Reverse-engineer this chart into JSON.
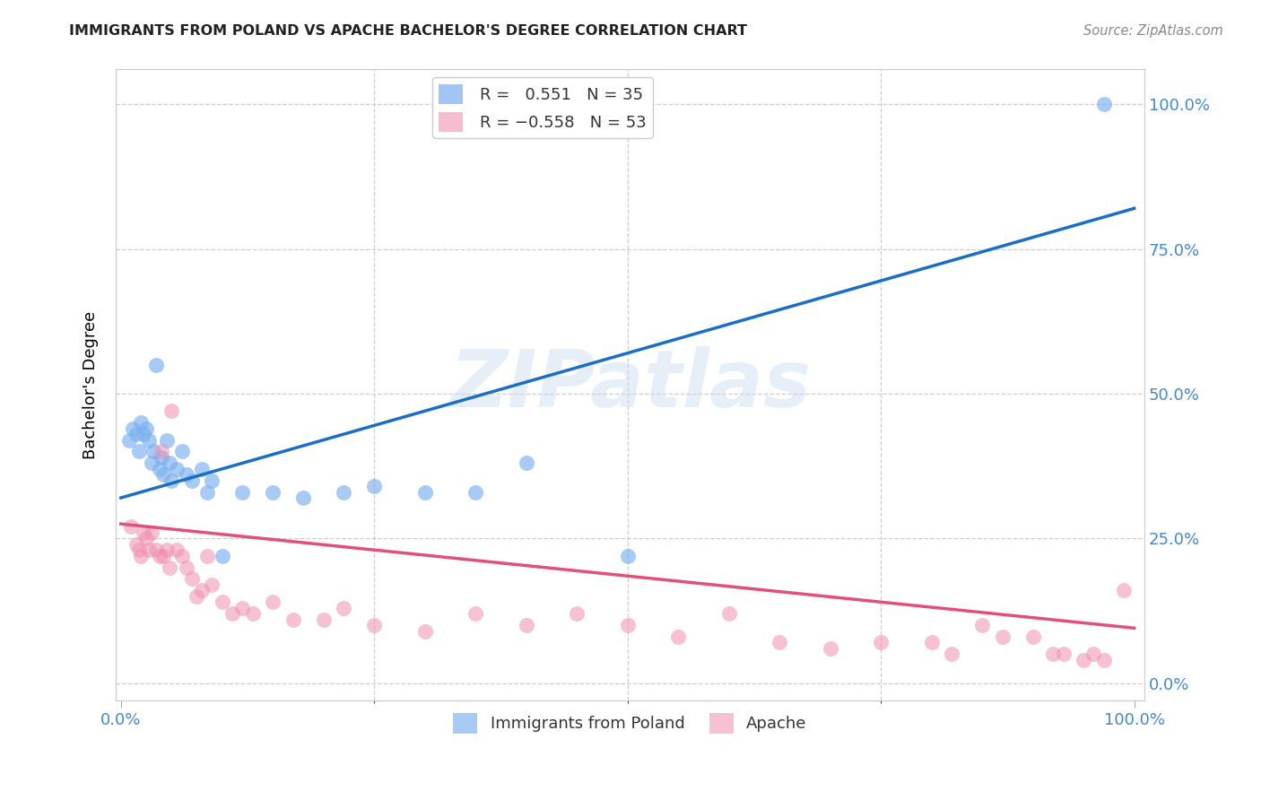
{
  "title": "IMMIGRANTS FROM POLAND VS APACHE BACHELOR'S DEGREE CORRELATION CHART",
  "source": "Source: ZipAtlas.com",
  "ylabel": "Bachelor's Degree",
  "blue_color": "#7aaff0",
  "pink_color": "#f090b0",
  "blue_line_color": "#1a6fc4",
  "pink_line_color": "#e0507a",
  "blue_tick_color": "#4488cc",
  "watermark_text": "ZIPatlas",
  "legend_top_label1": "R =   0.551   N = 35",
  "legend_top_label2": "R = -0.558   N = 53",
  "legend_bottom_label1": "Immigrants from Poland",
  "legend_bottom_label2": "Apache",
  "blue_line_x0": 0.0,
  "blue_line_y0": 0.32,
  "blue_line_x1": 1.0,
  "blue_line_y1": 0.82,
  "pink_line_x0": 0.0,
  "pink_line_y0": 0.275,
  "pink_line_x1": 1.0,
  "pink_line_y1": 0.095,
  "blue_scatter_x": [
    0.008,
    0.012,
    0.015,
    0.018,
    0.02,
    0.022,
    0.025,
    0.028,
    0.03,
    0.032,
    0.035,
    0.038,
    0.04,
    0.042,
    0.045,
    0.048,
    0.05,
    0.055,
    0.06,
    0.065,
    0.07,
    0.08,
    0.085,
    0.09,
    0.1,
    0.12,
    0.15,
    0.18,
    0.22,
    0.25,
    0.3,
    0.35,
    0.4,
    0.5,
    0.97
  ],
  "blue_scatter_y": [
    0.42,
    0.44,
    0.43,
    0.4,
    0.45,
    0.43,
    0.44,
    0.42,
    0.38,
    0.4,
    0.55,
    0.37,
    0.39,
    0.36,
    0.42,
    0.38,
    0.35,
    0.37,
    0.4,
    0.36,
    0.35,
    0.37,
    0.33,
    0.35,
    0.22,
    0.33,
    0.33,
    0.32,
    0.33,
    0.34,
    0.33,
    0.33,
    0.38,
    0.22,
    1.0
  ],
  "pink_scatter_x": [
    0.01,
    0.015,
    0.018,
    0.02,
    0.022,
    0.025,
    0.028,
    0.03,
    0.035,
    0.038,
    0.04,
    0.042,
    0.045,
    0.048,
    0.05,
    0.055,
    0.06,
    0.065,
    0.07,
    0.075,
    0.08,
    0.085,
    0.09,
    0.1,
    0.11,
    0.12,
    0.13,
    0.15,
    0.17,
    0.2,
    0.22,
    0.25,
    0.3,
    0.35,
    0.4,
    0.45,
    0.5,
    0.55,
    0.6,
    0.65,
    0.7,
    0.75,
    0.8,
    0.82,
    0.85,
    0.87,
    0.9,
    0.92,
    0.93,
    0.95,
    0.96,
    0.97,
    0.99
  ],
  "pink_scatter_y": [
    0.27,
    0.24,
    0.23,
    0.22,
    0.26,
    0.25,
    0.23,
    0.26,
    0.23,
    0.22,
    0.4,
    0.22,
    0.23,
    0.2,
    0.47,
    0.23,
    0.22,
    0.2,
    0.18,
    0.15,
    0.16,
    0.22,
    0.17,
    0.14,
    0.12,
    0.13,
    0.12,
    0.14,
    0.11,
    0.11,
    0.13,
    0.1,
    0.09,
    0.12,
    0.1,
    0.12,
    0.1,
    0.08,
    0.12,
    0.07,
    0.06,
    0.07,
    0.07,
    0.05,
    0.1,
    0.08,
    0.08,
    0.05,
    0.05,
    0.04,
    0.05,
    0.04,
    0.16
  ],
  "xlim": [
    0.0,
    1.0
  ],
  "ylim": [
    0.0,
    1.0
  ],
  "ytick_positions": [
    0.0,
    0.25,
    0.5,
    0.75,
    1.0
  ],
  "ytick_labels": [
    "0.0%",
    "25.0%",
    "50.0%",
    "75.0%",
    "100.0%"
  ],
  "xtick_positions": [
    0.0,
    1.0
  ],
  "xtick_labels": [
    "0.0%",
    "100.0%"
  ]
}
